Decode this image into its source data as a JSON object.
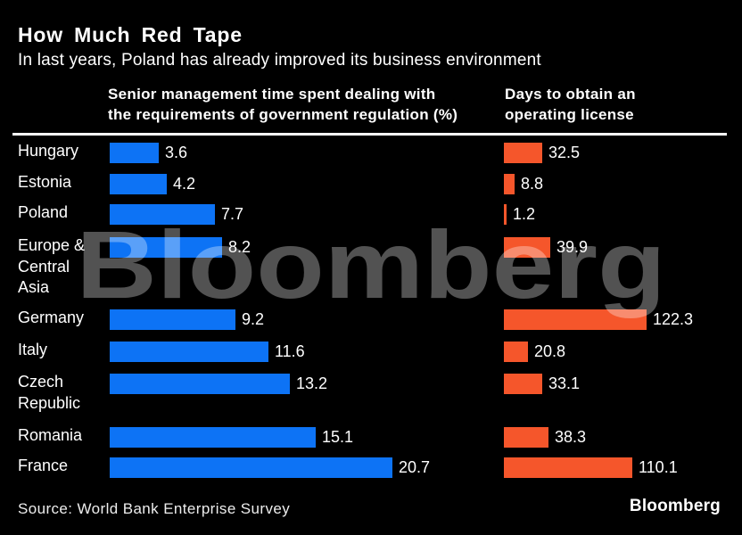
{
  "header": {
    "title": "How Much Red Tape",
    "subtitle": "In last years, Poland has already improved its business environment"
  },
  "columns": {
    "left_header": "Senior management time spent dealing with\nthe requirements of government regulation (%)",
    "right_header": "Days to obtain an\noperating license"
  },
  "watermark": "Bloomberg",
  "footer": {
    "source": "Source: World Bank Enterprise Survey",
    "logo": "Bloomberg"
  },
  "colors": {
    "background": "#000000",
    "regulation_bar": "#0D73F5",
    "license_bar": "#F5562B",
    "rule": "#FFFFFF",
    "watermark": "rgba(255,255,255,0.32)"
  },
  "chart_data": {
    "type": "bar",
    "orientation": "horizontal",
    "title": "How Much Red Tape",
    "subtitle": "In last years, Poland has already improved its business environment",
    "source": "Source: World Bank Enterprise Survey",
    "grid": false,
    "axes_shown": false,
    "value_labels": "each bar labeled with its numeric value to the right of the bar",
    "legend": "two column headers above the bar groups act as series labels",
    "categories": [
      "Hungary",
      "Estonia",
      "Poland",
      "Europe & Central Asia",
      "Germany",
      "Italy",
      "Czech Republic",
      "Romania",
      "France"
    ],
    "series": [
      {
        "name": "Senior management time spent dealing with the requirements of government regulation (%)",
        "color": "#0D73F5",
        "values": [
          3.6,
          4.2,
          7.7,
          8.2,
          9.2,
          11.6,
          13.2,
          15.1,
          20.7
        ]
      },
      {
        "name": "Days to obtain an operating license",
        "color": "#F5562B",
        "values": [
          32.5,
          8.8,
          1.2,
          39.9,
          122.3,
          20.8,
          33.1,
          38.3,
          110.1
        ]
      }
    ]
  }
}
